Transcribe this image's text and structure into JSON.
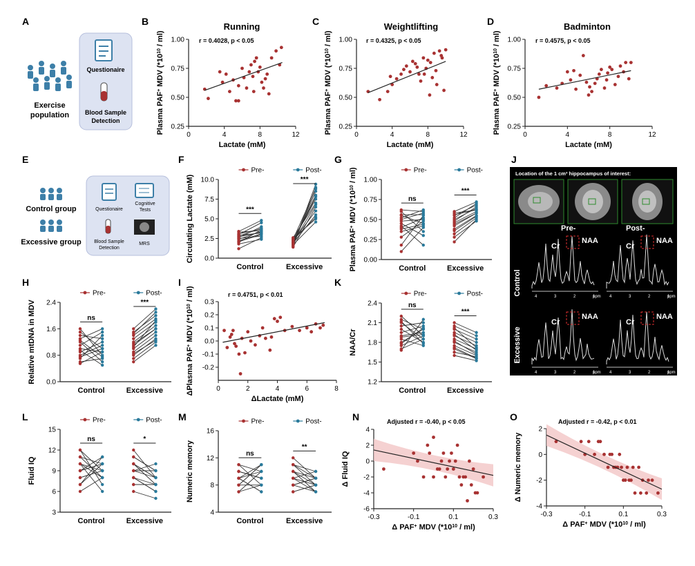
{
  "panels": {
    "A": {
      "label": "A",
      "left_text": "Exercise population",
      "box1": "Questionaire",
      "box2": "Blood Sample Detection"
    },
    "E": {
      "label": "E",
      "group1": "Control group",
      "group2": "Excessive group",
      "items": [
        "Questionaire",
        "Cognitive Tests",
        "Blood Sample Detection",
        "MRS"
      ]
    },
    "J": {
      "label": "J",
      "header": "Location of the 1 cm³ hippocampus of interest:",
      "col_pre": "Pre-",
      "col_post": "Post-",
      "row1": "Control",
      "row2": "Excessive",
      "peak_cr": "Cr",
      "peak_naa": "NAA",
      "ppm_ticks": [
        "4",
        "3",
        "2",
        "1"
      ],
      "ppm_unit": "ppm"
    }
  },
  "chart_data": [
    {
      "id": "B",
      "type": "scatter",
      "title": "Running",
      "annotation": "r = 0.4028, p < 0.05",
      "xlabel": "Lactate (mM)",
      "ylabel": "Plasma PAF+ MDV (*10^10 / ml)",
      "xlim": [
        0,
        12
      ],
      "ylim": [
        0.25,
        1.0
      ],
      "xticks": [
        "0",
        "4",
        "8",
        "12"
      ],
      "yticks": [
        "0.25",
        "0.50",
        "0.75",
        "1.00"
      ],
      "x": [
        1.8,
        2.2,
        3.5,
        3.8,
        4.2,
        4.6,
        5.0,
        5.3,
        5.6,
        6.0,
        6.2,
        6.5,
        6.8,
        7.0,
        7.2,
        7.3,
        7.6,
        7.8,
        8.0,
        8.2,
        8.4,
        8.6,
        8.8,
        9.0,
        9.3,
        9.8,
        10.2,
        10.4,
        5.6,
        7.4
      ],
      "y": [
        0.57,
        0.49,
        0.72,
        0.63,
        0.7,
        0.55,
        0.65,
        0.47,
        0.47,
        0.75,
        0.67,
        0.58,
        0.72,
        0.78,
        0.68,
        0.55,
        0.84,
        0.72,
        0.76,
        0.63,
        0.58,
        0.66,
        0.7,
        0.53,
        0.84,
        0.9,
        0.78,
        0.93,
        0.6,
        0.81
      ],
      "fit": [
        [
          1.8,
          0.56
        ],
        [
          10.5,
          0.8
        ]
      ]
    },
    {
      "id": "C",
      "type": "scatter",
      "title": "Weightlifting",
      "annotation": "r = 0.4325, p < 0.05",
      "xlabel": "Lactate (mM)",
      "ylabel": "Plasma PAF+ MDV (*10^10 / ml)",
      "xlim": [
        0,
        12
      ],
      "ylim": [
        0.25,
        1.0
      ],
      "xticks": [
        "0",
        "4",
        "8",
        "12"
      ],
      "yticks": [
        "0.25",
        "0.50",
        "0.75",
        "1.00"
      ],
      "x": [
        1.3,
        2.6,
        3.5,
        3.8,
        4.0,
        4.5,
        5.0,
        5.3,
        5.6,
        6.0,
        6.3,
        6.6,
        7.0,
        7.2,
        7.5,
        7.8,
        8.0,
        8.2,
        8.5,
        8.7,
        9.0,
        9.3,
        9.5,
        9.8,
        10.0,
        8.9,
        9.6,
        6.8,
        7.6,
        8.3
      ],
      "y": [
        0.55,
        0.48,
        0.55,
        0.68,
        0.61,
        0.66,
        0.7,
        0.74,
        0.77,
        0.72,
        0.81,
        0.79,
        0.7,
        0.64,
        0.84,
        0.75,
        0.82,
        0.52,
        0.67,
        0.88,
        0.61,
        0.9,
        0.86,
        0.56,
        0.91,
        0.73,
        0.84,
        0.76,
        0.7,
        0.8
      ],
      "fit": [
        [
          1.3,
          0.54
        ],
        [
          10.0,
          0.81
        ]
      ]
    },
    {
      "id": "D",
      "type": "scatter",
      "title": "Badminton",
      "annotation": "r = 0.4575, p < 0.05",
      "xlabel": "Lactate (mM)",
      "ylabel": "Plasma PAF+ MDV (*10^10 / ml)",
      "xlim": [
        0,
        12
      ],
      "ylim": [
        0.25,
        1.0
      ],
      "xticks": [
        "0",
        "4",
        "8",
        "12"
      ],
      "yticks": [
        "0.25",
        "0.50",
        "0.75",
        "1.00"
      ],
      "x": [
        1.3,
        2.0,
        3.0,
        3.5,
        4.0,
        4.3,
        4.8,
        5.2,
        5.5,
        5.8,
        6.0,
        6.3,
        6.6,
        6.8,
        7.0,
        7.2,
        7.5,
        7.8,
        8.0,
        8.2,
        8.5,
        8.8,
        9.0,
        9.3,
        9.5,
        9.8,
        10.0,
        4.6,
        7.7,
        6.1
      ],
      "y": [
        0.5,
        0.6,
        0.58,
        0.62,
        0.72,
        0.65,
        0.57,
        0.69,
        0.86,
        0.63,
        0.52,
        0.55,
        0.62,
        0.66,
        0.7,
        0.74,
        0.58,
        0.71,
        0.76,
        0.74,
        0.61,
        0.68,
        0.77,
        0.72,
        0.8,
        0.66,
        0.8,
        0.73,
        0.65,
        0.59
      ],
      "fit": [
        [
          1.3,
          0.57
        ],
        [
          10.0,
          0.73
        ]
      ]
    },
    {
      "id": "F",
      "type": "paired",
      "legend": [
        "Pre-",
        "Post-"
      ],
      "ylabel": "Circulating Lactate (mM)",
      "categories": [
        "Control",
        "Excessive"
      ],
      "ylim": [
        0,
        10
      ],
      "yticks": [
        "0.0",
        "2.5",
        "5.0",
        "7.5",
        "10.0"
      ],
      "sig": [
        "***",
        "***"
      ],
      "pre": [
        [
          2.1,
          2.4,
          2.8,
          3.0,
          3.3,
          2.2,
          1.8,
          2.6,
          3.1,
          2.9,
          2.5,
          1.2,
          2.0,
          3.4,
          2.7
        ],
        [
          1.5,
          1.8,
          2.0,
          2.3,
          2.6,
          1.4,
          2.2,
          1.9,
          2.5,
          1.7,
          2.1,
          2.4,
          1.6,
          2.0,
          2.3
        ]
      ],
      "post": [
        [
          3.0,
          3.4,
          3.8,
          4.5,
          3.5,
          3.1,
          2.4,
          4.0,
          3.7,
          3.2,
          2.8,
          2.6,
          3.6,
          4.8,
          3.3
        ],
        [
          9.0,
          8.5,
          8.0,
          7.5,
          7.0,
          6.5,
          6.0,
          5.5,
          5.0,
          4.6,
          7.8,
          8.8,
          9.4,
          6.8,
          5.2
        ]
      ]
    },
    {
      "id": "G",
      "type": "paired",
      "legend": [
        "Pre-",
        "Post-"
      ],
      "ylabel": "Plasma PAF+ MDV (*10^10 / ml)",
      "categories": [
        "Control",
        "Excessive"
      ],
      "ylim": [
        0,
        1.0
      ],
      "yticks": [
        "0.00",
        "0.25",
        "0.50",
        "0.75",
        "1.00"
      ],
      "sig": [
        "ns",
        "***"
      ],
      "pre": [
        [
          0.62,
          0.55,
          0.5,
          0.45,
          0.4,
          0.35,
          0.28,
          0.18,
          0.1,
          0.6,
          0.52,
          0.48,
          0.42,
          0.56,
          0.38
        ],
        [
          0.6,
          0.55,
          0.5,
          0.46,
          0.42,
          0.38,
          0.32,
          0.22,
          0.28,
          0.56,
          0.48,
          0.44,
          0.52,
          0.36,
          0.58
        ]
      ],
      "post": [
        [
          0.6,
          0.45,
          0.58,
          0.3,
          0.52,
          0.42,
          0.48,
          0.55,
          0.4,
          0.35,
          0.62,
          0.5,
          0.18,
          0.56,
          0.44
        ],
        [
          0.72,
          0.68,
          0.64,
          0.6,
          0.58,
          0.55,
          0.52,
          0.5,
          0.48,
          0.62,
          0.66,
          0.58,
          0.7,
          0.54,
          0.62
        ]
      ]
    },
    {
      "id": "H",
      "type": "paired",
      "legend": [
        "Pre-",
        "Post-"
      ],
      "ylabel": "Relative mtDNA in MDV",
      "categories": [
        "Control",
        "Excessive"
      ],
      "ylim": [
        0,
        2.4
      ],
      "yticks": [
        "0.0",
        "0.8",
        "1.6",
        "2.4"
      ],
      "sig": [
        "ns",
        "***"
      ],
      "pre": [
        [
          1.6,
          1.5,
          1.4,
          1.2,
          1.1,
          1.0,
          0.9,
          0.8,
          0.7,
          0.6,
          0.55,
          1.3,
          0.95,
          0.75,
          1.25
        ],
        [
          1.6,
          1.5,
          1.4,
          1.3,
          1.2,
          1.1,
          1.0,
          0.9,
          0.8,
          0.7,
          0.6,
          1.45,
          1.05,
          0.85,
          1.15
        ]
      ],
      "post": [
        [
          0.8,
          1.0,
          1.3,
          0.6,
          1.5,
          0.9,
          1.2,
          1.1,
          1.4,
          0.7,
          0.9,
          1.6,
          0.5,
          1.0,
          0.75
        ],
        [
          2.2,
          2.0,
          1.9,
          1.8,
          1.7,
          1.6,
          1.5,
          1.4,
          1.3,
          1.2,
          1.1,
          2.1,
          1.85,
          1.25,
          1.6
        ]
      ]
    },
    {
      "id": "I",
      "type": "scatter",
      "annotation": "r = 0.4751, p < 0.01",
      "xlabel": "ΔLactate (mM)",
      "ylabel": "ΔPlasma PAF+ MDV (*10^10 / ml)",
      "xlim": [
        0,
        8
      ],
      "ylim": [
        -0.3,
        0.3
      ],
      "xticks": [
        "0",
        "2",
        "4",
        "6",
        "8"
      ],
      "yticks": [
        "-0.2",
        "-0.1",
        "0.0",
        "0.1",
        "0.2",
        "0.3"
      ],
      "x": [
        0.4,
        0.6,
        0.8,
        1.0,
        1.2,
        1.4,
        1.5,
        1.6,
        1.8,
        2.0,
        2.2,
        2.5,
        2.8,
        3.0,
        3.2,
        3.5,
        3.8,
        4.0,
        4.2,
        4.5,
        5.0,
        5.5,
        6.0,
        6.3,
        6.6,
        6.9,
        7.1,
        1.1,
        0.9,
        3.6
      ],
      "y": [
        0.08,
        -0.05,
        0.03,
        0.08,
        -0.04,
        -0.1,
        -0.25,
        0.02,
        -0.09,
        0.07,
        0.0,
        -0.03,
        0.04,
        0.1,
        0.02,
        -0.07,
        0.17,
        0.15,
        0.18,
        0.08,
        0.11,
        0.08,
        0.1,
        0.07,
        0.13,
        0.1,
        0.12,
        -0.02,
        0.05,
        0.03
      ],
      "fit": [
        [
          0.3,
          -0.01
        ],
        [
          7.2,
          0.14
        ]
      ]
    },
    {
      "id": "K",
      "type": "paired",
      "legend": [
        "Pre-",
        "Post-"
      ],
      "ylabel": "NAA/Cr",
      "categories": [
        "Control",
        "Excessive"
      ],
      "ylim": [
        1.2,
        2.4
      ],
      "yticks": [
        "1.2",
        "1.5",
        "1.8",
        "2.1",
        "2.4"
      ],
      "sig": [
        "ns",
        "***"
      ],
      "pre": [
        [
          2.2,
          2.15,
          2.1,
          2.05,
          2.0,
          1.95,
          1.9,
          1.85,
          1.8,
          1.75,
          1.7,
          1.68,
          2.12,
          1.88,
          1.78
        ],
        [
          2.1,
          2.05,
          2.0,
          1.95,
          1.9,
          1.85,
          1.8,
          1.75,
          1.7,
          1.65,
          1.6,
          2.02,
          1.92,
          1.82,
          1.72
        ]
      ],
      "post": [
        [
          1.9,
          2.0,
          1.85,
          2.1,
          1.8,
          2.05,
          1.95,
          1.75,
          2.0,
          1.9,
          1.85,
          2.15,
          1.78,
          1.92,
          2.02
        ],
        [
          1.95,
          1.9,
          1.85,
          1.8,
          1.75,
          1.7,
          1.65,
          1.6,
          1.55,
          1.58,
          1.52,
          1.72,
          1.68,
          1.62,
          1.56
        ]
      ]
    },
    {
      "id": "L",
      "type": "paired",
      "legend": [
        "Pre-",
        "Post-"
      ],
      "ylabel": "Fluid IQ",
      "categories": [
        "Control",
        "Excessive"
      ],
      "ylim": [
        3,
        15
      ],
      "yticks": [
        "3",
        "6",
        "9",
        "12",
        "15"
      ],
      "sig": [
        "ns",
        "*"
      ],
      "pre": [
        [
          12,
          11,
          10,
          9,
          8,
          7,
          6,
          12,
          10,
          9,
          8,
          11,
          7,
          10,
          9
        ],
        [
          12,
          11,
          10,
          9,
          8,
          7,
          6,
          11,
          10,
          9,
          8,
          7,
          10,
          9,
          8
        ]
      ],
      "post": [
        [
          9,
          10,
          8,
          11,
          9,
          10,
          8,
          7,
          6,
          10,
          9,
          8,
          11,
          9,
          10
        ],
        [
          8,
          9,
          7,
          8,
          6,
          7,
          5,
          9,
          8,
          10,
          6,
          7,
          8,
          9,
          7
        ]
      ]
    },
    {
      "id": "M",
      "type": "paired",
      "legend": [
        "Pre-",
        "Post-"
      ],
      "ylabel": "Numeric memory",
      "categories": [
        "Control",
        "Excessive"
      ],
      "ylim": [
        4,
        16
      ],
      "yticks": [
        "4",
        "8",
        "12",
        "16"
      ],
      "sig": [
        "ns",
        "**"
      ],
      "pre": [
        [
          11,
          10,
          9,
          8,
          7,
          10,
          9,
          8,
          11,
          10,
          9,
          8,
          7,
          9,
          10
        ],
        [
          12,
          11,
          10,
          9,
          8,
          7,
          11,
          10,
          9,
          8,
          7,
          10,
          9,
          11,
          8
        ]
      ],
      "post": [
        [
          10,
          9,
          11,
          8,
          10,
          9,
          7,
          11,
          8,
          9,
          10,
          11,
          8,
          7,
          9
        ],
        [
          9,
          10,
          9,
          8,
          7,
          8,
          9,
          8,
          7,
          9,
          8,
          7,
          10,
          8,
          9
        ]
      ]
    },
    {
      "id": "N",
      "type": "scatter",
      "annotation": "Adjusted r = -0.40, p < 0.05",
      "xlabel": "Δ PAF+ MDV (*10^10 / ml)",
      "ylabel": "Δ Fluid IQ",
      "xlim": [
        -0.3,
        0.3
      ],
      "ylim": [
        -6,
        4
      ],
      "xticks": [
        "-0.3",
        "-0.1",
        "0.1",
        "0.3"
      ],
      "yticks": [
        "-6",
        "-4",
        "-2",
        "0",
        "2",
        "4"
      ],
      "x": [
        -0.25,
        -0.1,
        -0.05,
        -0.03,
        0.0,
        0.02,
        0.04,
        0.05,
        0.06,
        0.08,
        0.1,
        0.12,
        0.14,
        0.16,
        0.18,
        0.2,
        0.22,
        0.25,
        -0.08,
        0.03,
        0.09,
        0.15,
        0.19,
        -0.02,
        0.07,
        0.11,
        0.13,
        0.17,
        0.21,
        0.0
      ],
      "y": [
        -1,
        1,
        -2,
        2,
        3,
        -1,
        0,
        1,
        -2,
        0,
        -1,
        2,
        -3,
        -2,
        0,
        -1,
        -4,
        -2,
        0,
        -1,
        1,
        -2,
        -3,
        1,
        -1,
        0,
        -2,
        -5,
        -4,
        -2
      ],
      "fit": [
        [
          -0.3,
          1.4
        ],
        [
          0.3,
          -1.8
        ]
      ]
    },
    {
      "id": "O",
      "type": "scatter",
      "annotation": "Adjusted r = -0.42, p < 0.01",
      "xlabel": "Δ PAF+ MDV (*10^10 / ml)",
      "ylabel": "Δ Numeric memory",
      "xlim": [
        -0.3,
        0.3
      ],
      "ylim": [
        -4,
        2
      ],
      "xticks": [
        "-0.3",
        "-0.1",
        "0.1",
        "0.3"
      ],
      "yticks": [
        "-4",
        "-2",
        "0",
        "2"
      ],
      "x": [
        -0.25,
        -0.12,
        -0.08,
        -0.05,
        -0.03,
        0.0,
        0.02,
        0.04,
        0.05,
        0.06,
        0.08,
        0.1,
        0.12,
        0.14,
        0.16,
        0.18,
        0.2,
        0.22,
        0.25,
        -0.1,
        -0.02,
        0.03,
        0.07,
        0.11,
        0.15,
        0.19,
        0.23,
        0.28,
        0.09,
        0.13
      ],
      "y": [
        1,
        1,
        1,
        0,
        1,
        0,
        -1,
        0,
        -1,
        -1,
        0,
        -2,
        -1,
        -2,
        -3,
        -1,
        -2,
        -3,
        -2,
        0,
        1,
        0,
        -1,
        -2,
        -1,
        -3,
        -2,
        -3,
        -1,
        -2
      ],
      "fit": [
        [
          -0.3,
          1.5
        ],
        [
          0.3,
          -2.7
        ]
      ]
    }
  ],
  "colors": {
    "pre": "#a83232",
    "post": "#2a7a9b",
    "fit_band": "#f3c6c6",
    "panel_box": "#dde3f2"
  }
}
